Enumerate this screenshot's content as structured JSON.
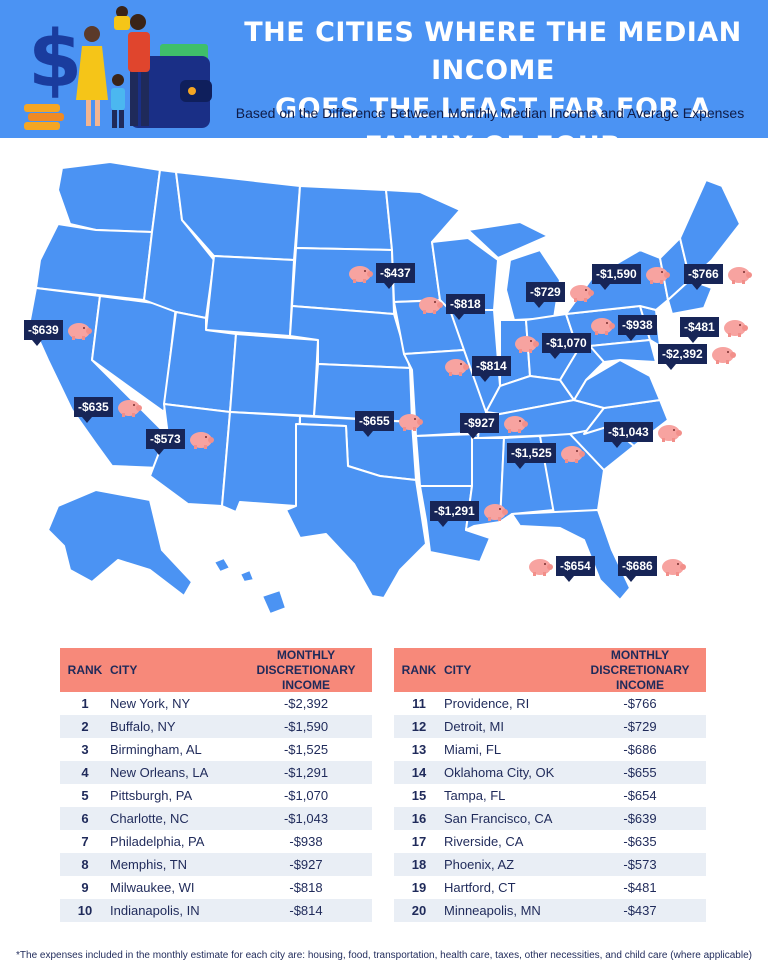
{
  "header": {
    "title_line1": "THE CITIES WHERE THE MEDIAN INCOME",
    "title_line2": "GOES THE LEAST FAR FOR A FAMILY OF FOUR",
    "subtitle": "Based on the Difference Between Monthly Median Income and Average Expenses"
  },
  "colors": {
    "header": "#4b93f3",
    "state_fill": "#4b93f3",
    "state_border": "#ffffff",
    "label_bg": "#172557",
    "pig": "#f7a3a0",
    "table_header": "#f7897a",
    "row_alt": "#e9eef5"
  },
  "map_labels": [
    {
      "value": "-$437"
    },
    {
      "value": "-$1,590"
    },
    {
      "value": "-$766"
    },
    {
      "value": "-$818"
    },
    {
      "value": "-$729"
    },
    {
      "value": "-$639"
    },
    {
      "value": "-$938"
    },
    {
      "value": "-$481"
    },
    {
      "value": "-$1,070"
    },
    {
      "value": "-$2,392"
    },
    {
      "value": "-$814"
    },
    {
      "value": "-$635"
    },
    {
      "value": "-$655"
    },
    {
      "value": "-$927"
    },
    {
      "value": "-$1,043"
    },
    {
      "value": "-$573"
    },
    {
      "value": "-$1,525"
    },
    {
      "value": "-$1,291"
    },
    {
      "value": "-$654"
    },
    {
      "value": "-$686"
    }
  ],
  "table": {
    "col_rank": "RANK",
    "col_city": "CITY",
    "col_income_line1": "MONTHLY DISCRETIONARY",
    "col_income_line2": "INCOME",
    "left": [
      {
        "rank": "1",
        "city": "New York, NY",
        "income": "-$2,392"
      },
      {
        "rank": "2",
        "city": "Buffalo, NY",
        "income": "-$1,590"
      },
      {
        "rank": "3",
        "city": "Birmingham, AL",
        "income": "-$1,525"
      },
      {
        "rank": "4",
        "city": "New Orleans, LA",
        "income": "-$1,291"
      },
      {
        "rank": "5",
        "city": "Pittsburgh, PA",
        "income": "-$1,070"
      },
      {
        "rank": "6",
        "city": "Charlotte, NC",
        "income": "-$1,043"
      },
      {
        "rank": "7",
        "city": "Philadelphia, PA",
        "income": "-$938"
      },
      {
        "rank": "8",
        "city": "Memphis, TN",
        "income": "-$927"
      },
      {
        "rank": "9",
        "city": "Milwaukee, WI",
        "income": "-$818"
      },
      {
        "rank": "10",
        "city": "Indianapolis, IN",
        "income": "-$814"
      }
    ],
    "right": [
      {
        "rank": "11",
        "city": "Providence, RI",
        "income": "-$766"
      },
      {
        "rank": "12",
        "city": "Detroit, MI",
        "income": "-$729"
      },
      {
        "rank": "13",
        "city": "Miami, FL",
        "income": "-$686"
      },
      {
        "rank": "14",
        "city": "Oklahoma City, OK",
        "income": "-$655"
      },
      {
        "rank": "15",
        "city": "Tampa, FL",
        "income": "-$654"
      },
      {
        "rank": "16",
        "city": "San Francisco, CA",
        "income": "-$639"
      },
      {
        "rank": "17",
        "city": "Riverside, CA",
        "income": "-$635"
      },
      {
        "rank": "18",
        "city": "Phoenix, AZ",
        "income": "-$573"
      },
      {
        "rank": "19",
        "city": "Hartford, CT",
        "income": "-$481"
      },
      {
        "rank": "20",
        "city": "Minneapolis, MN",
        "income": "-$437"
      }
    ]
  },
  "footnote": "*The expenses included in the monthly estimate for each city are: housing, food, transportation, health care, taxes, other necessities, and child care (where applicable)"
}
